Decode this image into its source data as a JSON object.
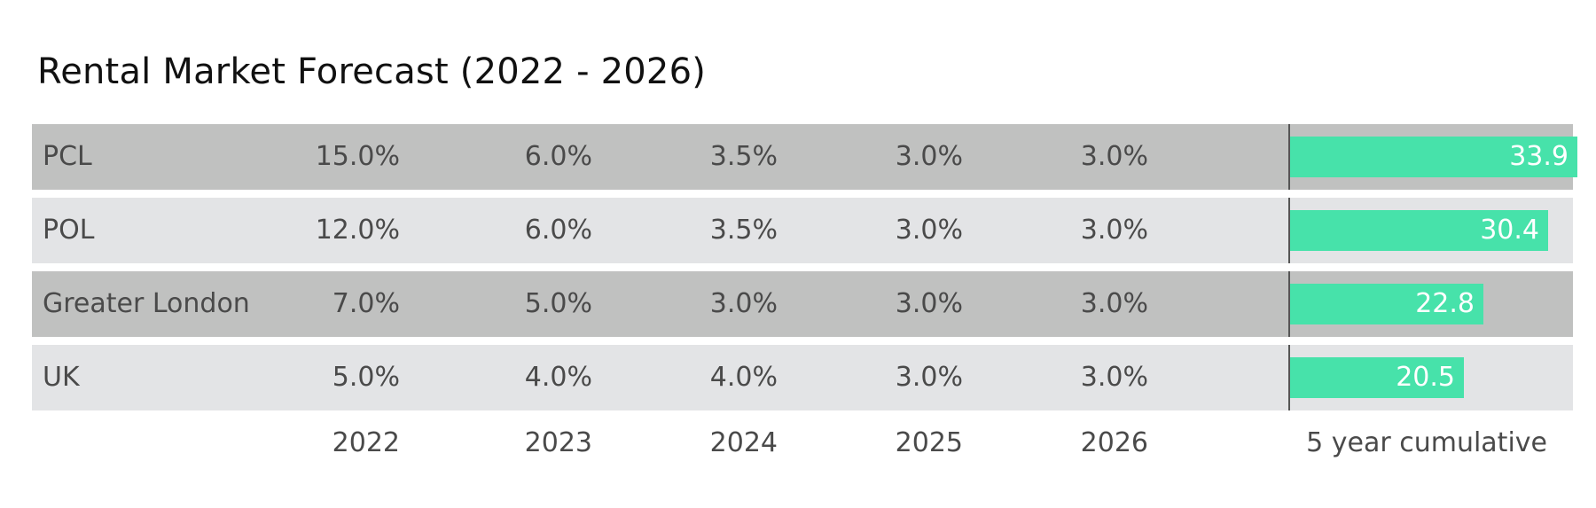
{
  "chart_data": {
    "type": "table",
    "title": "Rental Market Forecast (2022 - 2026)",
    "columns": [
      "2022",
      "2023",
      "2024",
      "2025",
      "2026"
    ],
    "cumulative_label": "5 year cumulative",
    "rows": [
      {
        "name": "PCL",
        "values": [
          "15.0%",
          "6.0%",
          "3.5%",
          "3.0%",
          "3.0%"
        ],
        "cumulative": 33.9,
        "cumulative_label": "33.9"
      },
      {
        "name": "POL",
        "values": [
          "12.0%",
          "6.0%",
          "3.5%",
          "3.0%",
          "3.0%"
        ],
        "cumulative": 30.4,
        "cumulative_label": "30.4"
      },
      {
        "name": "Greater London",
        "values": [
          "7.0%",
          "5.0%",
          "3.0%",
          "3.0%",
          "3.0%"
        ],
        "cumulative": 22.8,
        "cumulative_label": "22.8"
      },
      {
        "name": "UK",
        "values": [
          "5.0%",
          "4.0%",
          "4.0%",
          "3.0%",
          "3.0%"
        ],
        "cumulative": 20.5,
        "cumulative_label": "20.5"
      }
    ],
    "cumulative_range": [
      0,
      34.5
    ],
    "colors": {
      "bar": "#47e2aa",
      "row_dark": "#c0c1c0",
      "row_light": "#e3e4e6"
    }
  }
}
